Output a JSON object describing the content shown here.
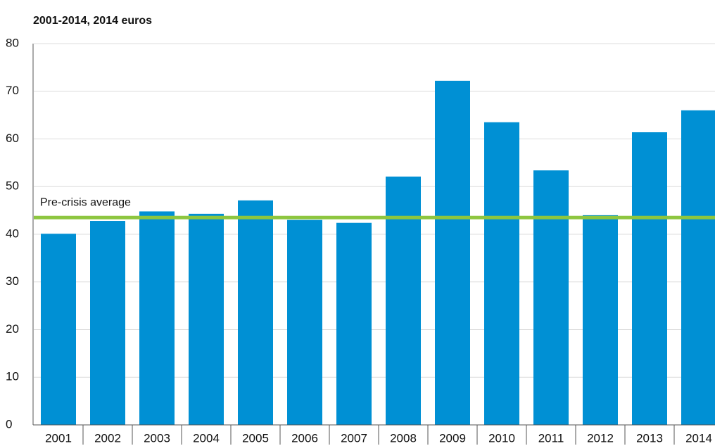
{
  "chart_data": {
    "type": "bar",
    "title": "2001-2014, 2014 euros",
    "categories": [
      "2001",
      "2002",
      "2003",
      "2004",
      "2005",
      "2006",
      "2007",
      "2008",
      "2009",
      "2010",
      "2011",
      "2012",
      "2013",
      "2014"
    ],
    "values": [
      40.1,
      42.8,
      44.8,
      44.3,
      47.1,
      43.0,
      42.4,
      52.1,
      72.2,
      63.5,
      53.4,
      44.0,
      61.4,
      66.0
    ],
    "color": "#0090d4",
    "ylim": [
      0,
      80
    ],
    "yticks": [
      0,
      10,
      20,
      30,
      40,
      50,
      60,
      70,
      80
    ],
    "grid": true,
    "reference_line": {
      "label": "Pre-crisis average",
      "value": 43.5,
      "color": "#8dc63f"
    }
  }
}
